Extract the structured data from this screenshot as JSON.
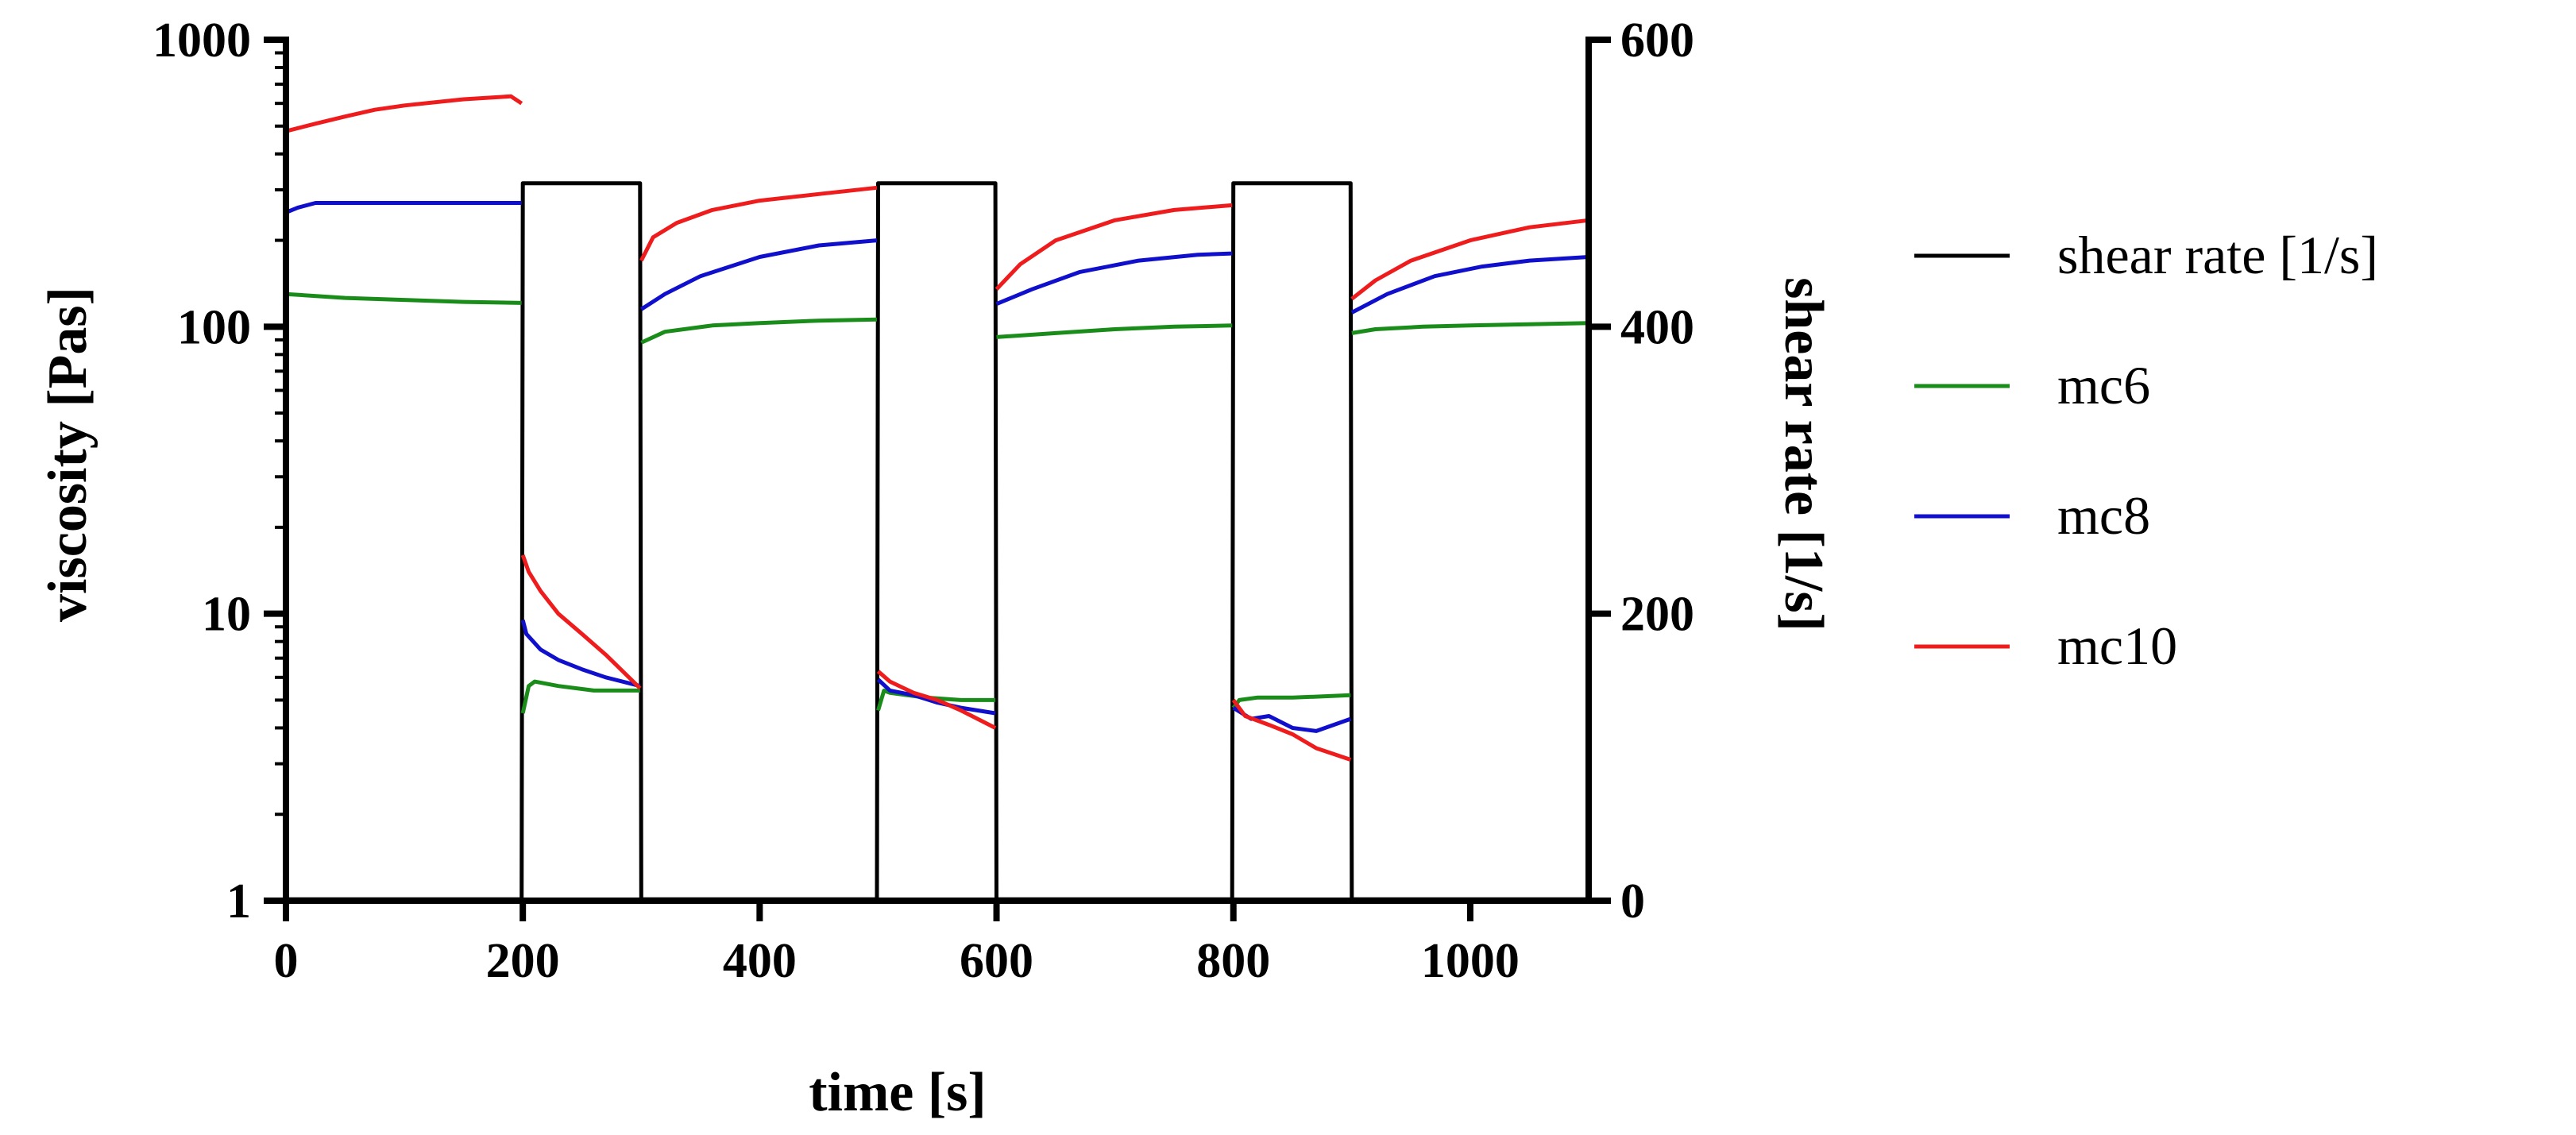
{
  "chart_data": {
    "type": "line",
    "xlabel": "time [s]",
    "ylabel_left": "viscosity [Pas]",
    "ylabel_right": "shear rate [1/s]",
    "x_axis": {
      "min": 0,
      "max": 1100,
      "ticks": [
        0,
        200,
        400,
        600,
        800,
        1000
      ],
      "tick_labels": [
        "0",
        "200",
        "400",
        "600",
        "800",
        "1000"
      ]
    },
    "y_left_axis": {
      "scale": "log",
      "min": 1,
      "max": 1000,
      "ticks": [
        1,
        10,
        100,
        1000
      ],
      "tick_labels": [
        "1",
        "10",
        "100",
        "1000"
      ]
    },
    "y_right_axis": {
      "scale": "linear",
      "min": 0,
      "max": 600,
      "ticks": [
        0,
        200,
        400,
        600
      ],
      "tick_labels": [
        "0",
        "200",
        "400",
        "600"
      ]
    },
    "legend": {
      "placement": "right",
      "entries": [
        {
          "label": "shear rate [1/s]",
          "color": "#000000"
        },
        {
          "label": "mc6",
          "color": "#1a8c1a"
        },
        {
          "label": "mc8",
          "color": "#1010cc"
        },
        {
          "label": "mc10",
          "color": "#ee1c1c"
        }
      ]
    },
    "series": [
      {
        "name": "shear rate [1/s]",
        "axis": "right",
        "color": "#000000",
        "x": [
          0,
          199,
          200,
          299,
          300,
          499,
          500,
          599,
          600,
          799,
          800,
          899,
          900,
          1100
        ],
        "y": [
          1,
          1,
          500,
          500,
          1,
          1,
          500,
          500,
          1,
          1,
          500,
          500,
          1,
          1
        ]
      },
      {
        "name": "mc6",
        "axis": "left",
        "color": "#1a8c1a",
        "segments": [
          {
            "x": [
              0,
              50,
              100,
              150,
              199
            ],
            "y": [
              130,
              126,
              124,
              122,
              121
            ]
          },
          {
            "x": [
              200,
              205,
              210,
              230,
              260,
              299
            ],
            "y": [
              4.5,
              5.6,
              5.8,
              5.6,
              5.4,
              5.4
            ]
          },
          {
            "x": [
              300,
              320,
              360,
              400,
              450,
              499
            ],
            "y": [
              88,
              96,
              101,
              103,
              105,
              106
            ]
          },
          {
            "x": [
              500,
              505,
              510,
              540,
              570,
              599
            ],
            "y": [
              4.6,
              5.4,
              5.3,
              5.1,
              5.0,
              5.0
            ]
          },
          {
            "x": [
              600,
              650,
              700,
              750,
              799
            ],
            "y": [
              92,
              95,
              98,
              100,
              101
            ]
          },
          {
            "x": [
              800,
              805,
              820,
              850,
              899
            ],
            "y": [
              4.7,
              5.0,
              5.1,
              5.1,
              5.2
            ]
          },
          {
            "x": [
              900,
              920,
              960,
              1000,
              1050,
              1100
            ],
            "y": [
              95,
              98,
              100,
              101,
              102,
              103
            ]
          }
        ]
      },
      {
        "name": "mc8",
        "axis": "left",
        "color": "#1010cc",
        "segments": [
          {
            "x": [
              0,
              10,
              25,
              60,
              120,
              199
            ],
            "y": [
              250,
              260,
              270,
              270,
              270,
              270
            ]
          },
          {
            "x": [
              200,
              203,
              215,
              230,
              250,
              270,
              299
            ],
            "y": [
              9.5,
              8.5,
              7.5,
              6.9,
              6.4,
              6.0,
              5.6
            ]
          },
          {
            "x": [
              300,
              320,
              350,
              400,
              450,
              499
            ],
            "y": [
              115,
              130,
              150,
              175,
              192,
              200
            ]
          },
          {
            "x": [
              500,
              510,
              530,
              550,
              570,
              599
            ],
            "y": [
              5.9,
              5.4,
              5.2,
              4.9,
              4.7,
              4.5
            ]
          },
          {
            "x": [
              600,
              630,
              670,
              720,
              770,
              799
            ],
            "y": [
              120,
              135,
              155,
              170,
              178,
              180
            ]
          },
          {
            "x": [
              800,
              815,
              830,
              850,
              870,
              899
            ],
            "y": [
              4.7,
              4.3,
              4.4,
              4.0,
              3.9,
              4.3
            ]
          },
          {
            "x": [
              900,
              930,
              970,
              1010,
              1050,
              1100
            ],
            "y": [
              112,
              130,
              150,
              162,
              170,
              175
            ]
          }
        ]
      },
      {
        "name": "mc10",
        "axis": "left",
        "color": "#ee1c1c",
        "segments": [
          {
            "x": [
              0,
              25,
              50,
              75,
              100,
              150,
              190,
              199
            ],
            "y": [
              480,
              510,
              540,
              570,
              590,
              620,
              635,
              600
            ]
          },
          {
            "x": [
              200,
              205,
              215,
              230,
              250,
              270,
              299
            ],
            "y": [
              16,
              14,
              12,
              10,
              8.5,
              7.2,
              5.5
            ]
          },
          {
            "x": [
              300,
              310,
              330,
              360,
              400,
              450,
              499
            ],
            "y": [
              170,
              205,
              230,
              255,
              275,
              290,
              305
            ]
          },
          {
            "x": [
              500,
              510,
              530,
              550,
              570,
              599
            ],
            "y": [
              6.3,
              5.8,
              5.3,
              5.0,
              4.6,
              4.0
            ]
          },
          {
            "x": [
              600,
              620,
              650,
              700,
              750,
              799
            ],
            "y": [
              135,
              165,
              200,
              235,
              255,
              265
            ]
          },
          {
            "x": [
              800,
              810,
              830,
              850,
              870,
              899
            ],
            "y": [
              5.0,
              4.4,
              4.1,
              3.8,
              3.4,
              3.1
            ]
          },
          {
            "x": [
              900,
              920,
              950,
              1000,
              1050,
              1100
            ],
            "y": [
              125,
              145,
              170,
              200,
              222,
              235
            ]
          }
        ]
      }
    ]
  }
}
